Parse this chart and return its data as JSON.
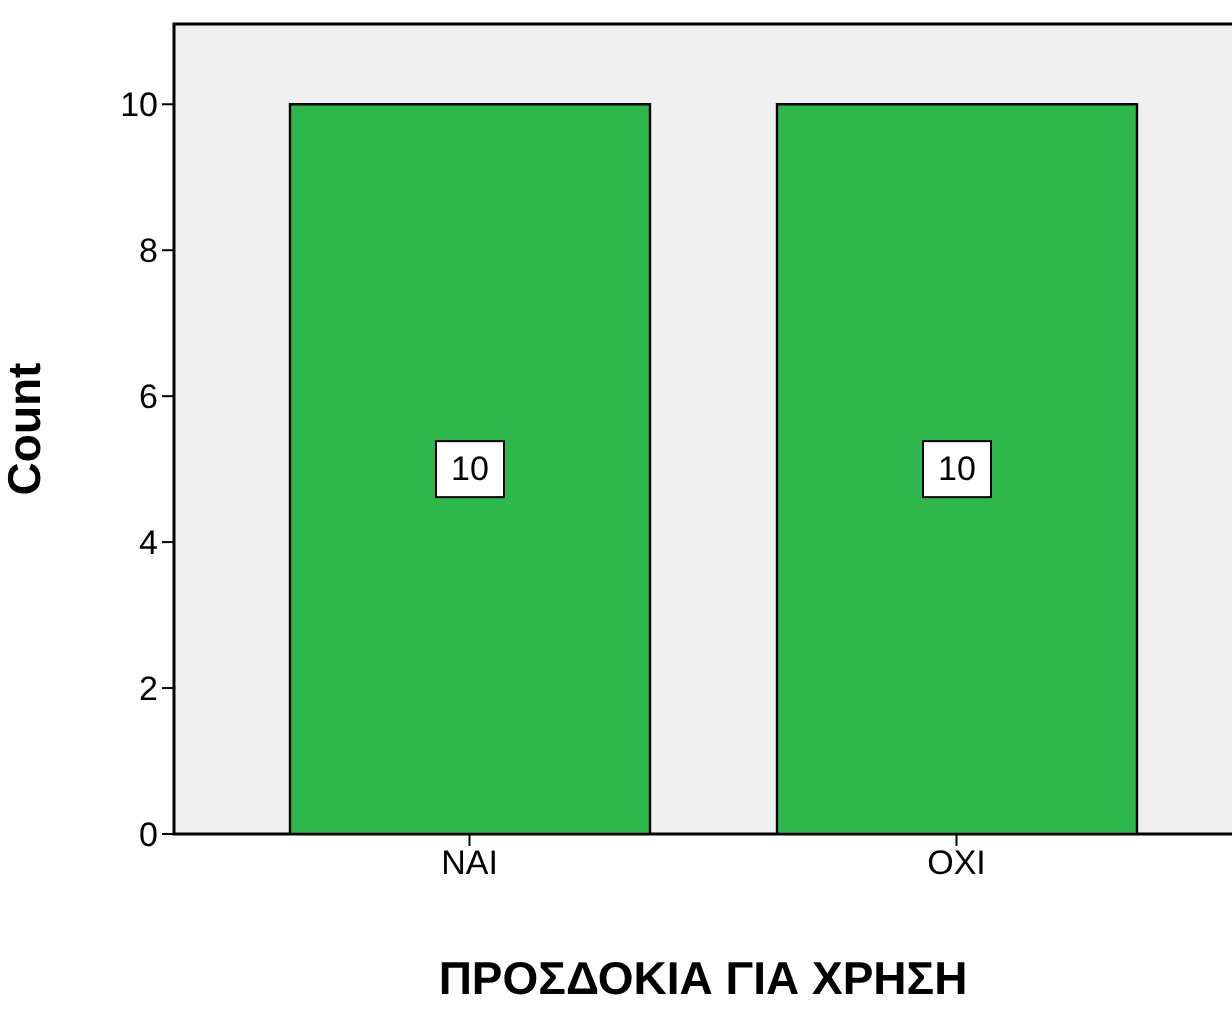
{
  "chart_data": {
    "type": "bar",
    "xlabel": "ΠΡΟΣΔΟΚΙΑ ΓΙΑ ΧΡΗΣΗ",
    "ylabel": "Count",
    "categories": [
      "ΝΑΙ",
      "ΟΧΙ"
    ],
    "values": [
      10,
      10
    ],
    "color": "#2eb84b",
    "ylim": [
      0,
      11.1
    ],
    "yticks": [
      0,
      2,
      4,
      6,
      8,
      10
    ],
    "grid": false,
    "data_labels": true
  }
}
